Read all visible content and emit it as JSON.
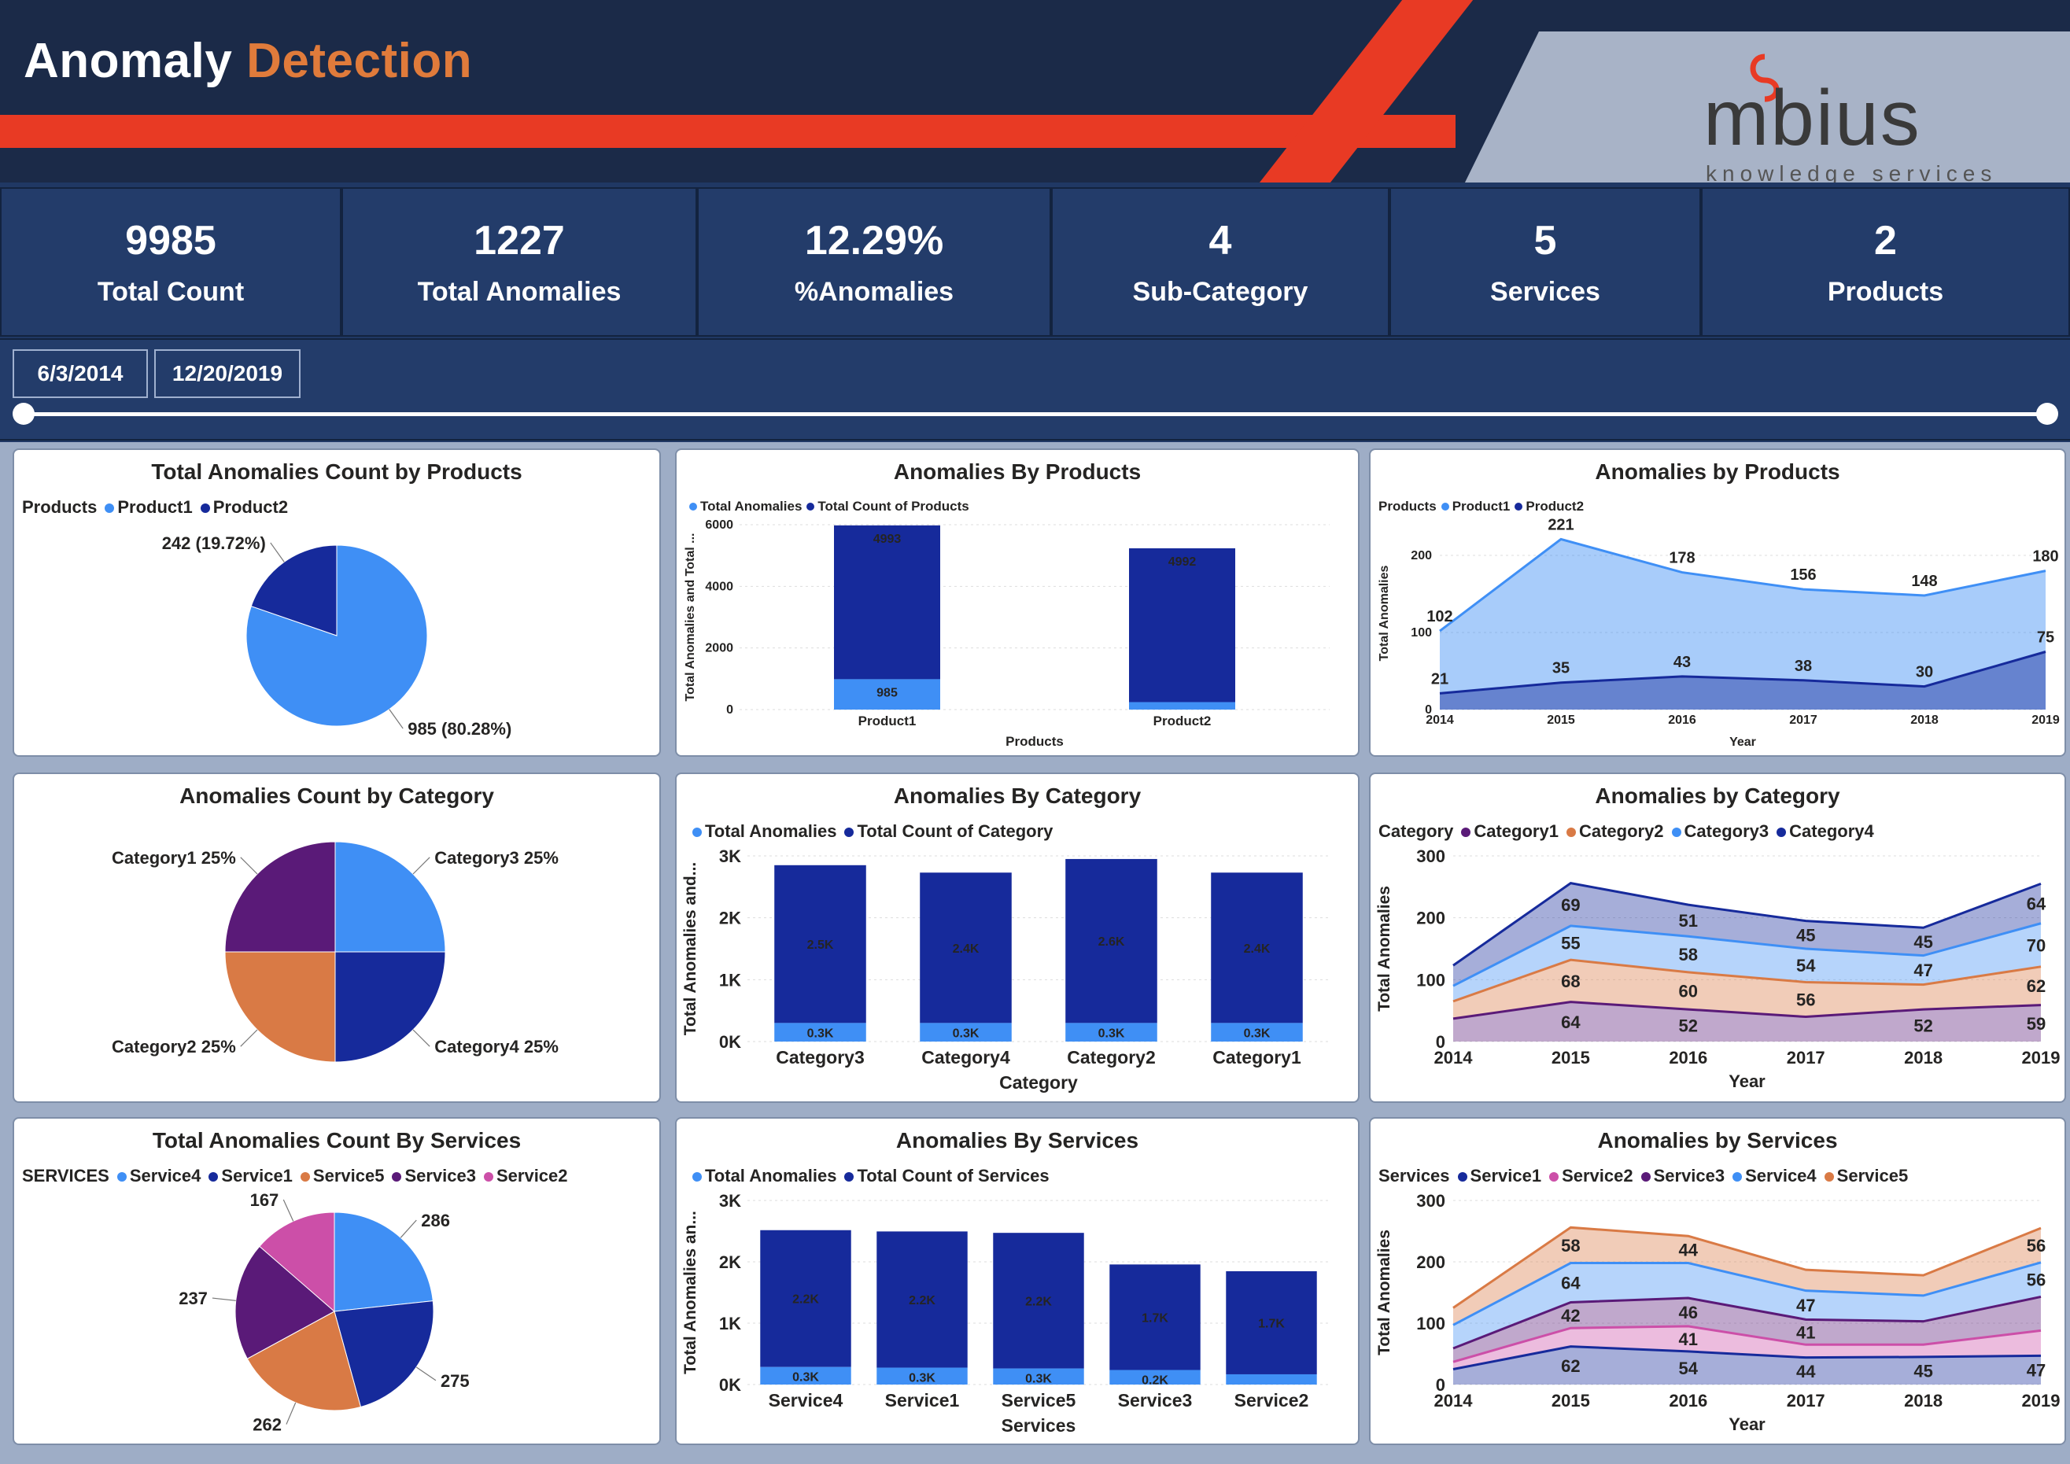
{
  "header": {
    "title_main": "Anomaly",
    "title_accent": "Detection",
    "logo_text": "mbius",
    "logo_sub": "knowledge services"
  },
  "kpis": [
    {
      "value": "9985",
      "label": "Total Count"
    },
    {
      "value": "1227",
      "label": "Total Anomalies"
    },
    {
      "value": "12.29%",
      "label": "%Anomalies"
    },
    {
      "value": "4",
      "label": "Sub-Category"
    },
    {
      "value": "5",
      "label": "Services"
    },
    {
      "value": "2",
      "label": "Products"
    }
  ],
  "filter": {
    "start_date": "6/3/2014",
    "end_date": "12/20/2019",
    "range_start": 0,
    "range_end": 1
  },
  "colors": {
    "light_blue": "#3f8ff5",
    "dark_blue": "#162a9b",
    "orange": "#d97a45",
    "purple": "#5a1a78",
    "pink": "#cc4fa8",
    "title_red": "#e83a24"
  },
  "chart_data": [
    {
      "id": "pie-products",
      "type": "pie",
      "title": "Total Anomalies Count by Products",
      "legend_title": "Products",
      "slices": [
        {
          "name": "Product1",
          "value": 985,
          "label": "985 (80.28%)",
          "color": "#3f8ff5"
        },
        {
          "name": "Product2",
          "value": 242,
          "label": "242 (19.72%)",
          "color": "#162a9b"
        }
      ]
    },
    {
      "id": "bar-products",
      "type": "bar",
      "title": "Anomalies By Products",
      "legend": [
        "Total Anomalies",
        "Total Count of Products"
      ],
      "categories": [
        "Product1",
        "Product2"
      ],
      "series": [
        {
          "name": "Total Anomalies",
          "values": [
            985,
            242
          ],
          "labels": [
            "985",
            ""
          ],
          "color": "#3f8ff5"
        },
        {
          "name": "Total Count of Products",
          "values": [
            4993,
            4992
          ],
          "labels": [
            "4993",
            "4992"
          ],
          "color": "#162a9b"
        }
      ],
      "xlabel": "Products",
      "ylabel": "Total Anomalies and Total ...",
      "ylim": [
        0,
        6000
      ],
      "yticks": [
        0,
        2000,
        4000,
        6000
      ],
      "ytick_labels": [
        "0",
        "2000",
        "4000",
        "6000"
      ]
    },
    {
      "id": "area-products",
      "type": "area",
      "title": "Anomalies by Products",
      "legend_title": "Products",
      "x": [
        "2014",
        "2015",
        "2016",
        "2017",
        "2018",
        "2019"
      ],
      "series": [
        {
          "name": "Product1",
          "values": [
            102,
            221,
            178,
            156,
            148,
            180
          ],
          "color": "#3f8ff5"
        },
        {
          "name": "Product2",
          "values": [
            21,
            35,
            43,
            38,
            30,
            75
          ],
          "color": "#162a9b"
        }
      ],
      "xlabel": "Year",
      "ylabel": "Total Anomalies",
      "ylim": [
        0,
        250
      ],
      "yticks": [
        0,
        100,
        200
      ],
      "stacked": false
    },
    {
      "id": "pie-category",
      "type": "pie",
      "title": "Anomalies Count by Category",
      "slices": [
        {
          "name": "Category3",
          "value": 25,
          "label": "Category3 25%",
          "color": "#3f8ff5"
        },
        {
          "name": "Category4",
          "value": 25,
          "label": "Category4 25%",
          "color": "#162a9b"
        },
        {
          "name": "Category2",
          "value": 25,
          "label": "Category2 25%",
          "color": "#d97a45"
        },
        {
          "name": "Category1",
          "value": 25,
          "label": "Category1 25%",
          "color": "#5a1a78"
        }
      ]
    },
    {
      "id": "bar-category",
      "type": "bar",
      "title": "Anomalies By Category",
      "legend": [
        "Total Anomalies",
        "Total Count of Category"
      ],
      "categories": [
        "Category3",
        "Category4",
        "Category2",
        "Category1"
      ],
      "series": [
        {
          "name": "Total Anomalies",
          "values": [
            300,
            300,
            300,
            300
          ],
          "labels": [
            "0.3K",
            "0.3K",
            "0.3K",
            "0.3K"
          ],
          "color": "#3f8ff5"
        },
        {
          "name": "Total Count of Category",
          "values": [
            2550,
            2430,
            2650,
            2430
          ],
          "labels": [
            "2.5K",
            "2.4K",
            "2.6K",
            "2.4K"
          ],
          "color": "#162a9b"
        }
      ],
      "xlabel": "Category",
      "ylabel": "Total Anomalies and...",
      "ylim": [
        0,
        3000
      ],
      "yticks": [
        0,
        1000,
        2000,
        3000
      ],
      "ytick_labels": [
        "0K",
        "1K",
        "2K",
        "3K"
      ]
    },
    {
      "id": "area-category",
      "type": "area",
      "title": "Anomalies by Category",
      "legend_title": "Category",
      "x": [
        "2014",
        "2015",
        "2016",
        "2017",
        "2018",
        "2019"
      ],
      "series": [
        {
          "name": "Category1",
          "values": [
            37,
            64,
            52,
            40,
            52,
            59
          ],
          "color": "#5a1a78",
          "labels": [
            "",
            "64",
            "52",
            "",
            "52",
            "59"
          ]
        },
        {
          "name": "Category2",
          "values": [
            28,
            68,
            60,
            56,
            40,
            62
          ],
          "color": "#d97a45",
          "labels": [
            "",
            "68",
            "60",
            "56",
            "",
            "62"
          ]
        },
        {
          "name": "Category3",
          "values": [
            25,
            55,
            58,
            54,
            47,
            70
          ],
          "color": "#3f8ff5",
          "labels": [
            "",
            "55",
            "58",
            "54",
            "47",
            "70"
          ]
        },
        {
          "name": "Category4",
          "values": [
            33,
            69,
            51,
            45,
            45,
            64
          ],
          "color": "#162a9b",
          "labels": [
            "",
            "69",
            "51",
            "45",
            "45",
            "64"
          ]
        }
      ],
      "xlabel": "Year",
      "ylabel": "Total Anomalies",
      "ylim": [
        0,
        300
      ],
      "yticks": [
        0,
        100,
        200,
        300
      ],
      "stacked": true
    },
    {
      "id": "pie-services",
      "type": "pie",
      "title": "Total Anomalies Count By Services",
      "legend_title": "SERVICES",
      "slices": [
        {
          "name": "Service4",
          "value": 286,
          "label": "286",
          "color": "#3f8ff5"
        },
        {
          "name": "Service1",
          "value": 275,
          "label": "275",
          "color": "#162a9b"
        },
        {
          "name": "Service5",
          "value": 262,
          "label": "262",
          "color": "#d97a45"
        },
        {
          "name": "Service3",
          "value": 237,
          "label": "237",
          "color": "#5a1a78"
        },
        {
          "name": "Service2",
          "value": 167,
          "label": "167",
          "color": "#cc4fa8"
        }
      ]
    },
    {
      "id": "bar-services",
      "type": "bar",
      "title": "Anomalies By Services",
      "legend": [
        "Total Anomalies",
        "Total Count of Services"
      ],
      "categories": [
        "Service4",
        "Service1",
        "Service5",
        "Service3",
        "Service2"
      ],
      "series": [
        {
          "name": "Total Anomalies",
          "values": [
            286,
            275,
            262,
            237,
            167
          ],
          "labels": [
            "0.3K",
            "0.3K",
            "0.3K",
            "0.2K",
            ""
          ],
          "color": "#3f8ff5"
        },
        {
          "name": "Total Count of Services",
          "values": [
            2230,
            2220,
            2210,
            1720,
            1680
          ],
          "labels": [
            "2.2K",
            "2.2K",
            "2.2K",
            "1.7K",
            "1.7K"
          ],
          "color": "#162a9b"
        }
      ],
      "xlabel": "Services",
      "ylabel": "Total Anomalies an...",
      "ylim": [
        0,
        3000
      ],
      "yticks": [
        0,
        1000,
        2000,
        3000
      ],
      "ytick_labels": [
        "0K",
        "1K",
        "2K",
        "3K"
      ]
    },
    {
      "id": "area-services",
      "type": "area",
      "title": "Anomalies by Services",
      "legend_title": "Services",
      "legend_order": [
        "Service1",
        "Service2",
        "Service3",
        "Service4",
        "Service5"
      ],
      "x": [
        "2014",
        "2015",
        "2016",
        "2017",
        "2018",
        "2019"
      ],
      "series": [
        {
          "name": "Service1",
          "values": [
            25,
            62,
            54,
            44,
            45,
            47
          ],
          "color": "#162a9b",
          "labels": [
            "",
            "62",
            "54",
            "44",
            "45",
            "47"
          ]
        },
        {
          "name": "Service2",
          "values": [
            12,
            30,
            41,
            21,
            20,
            41
          ],
          "color": "#cc4fa8",
          "labels": [
            "",
            "",
            "41",
            "",
            "",
            ""
          ]
        },
        {
          "name": "Service3",
          "values": [
            22,
            42,
            46,
            41,
            38,
            55
          ],
          "color": "#5a1a78",
          "labels": [
            "",
            "42",
            "46",
            "41",
            "",
            ""
          ]
        },
        {
          "name": "Service4",
          "values": [
            38,
            64,
            57,
            47,
            42,
            56
          ],
          "color": "#3f8ff5",
          "labels": [
            "",
            "64",
            "",
            "47",
            "",
            "56"
          ]
        },
        {
          "name": "Service5",
          "values": [
            28,
            58,
            44,
            34,
            33,
            56
          ],
          "color": "#d97a45",
          "labels": [
            "",
            "58",
            "44",
            "",
            "",
            "56"
          ]
        }
      ],
      "xlabel": "Year",
      "ylabel": "Total Anomalies",
      "ylim": [
        0,
        300
      ],
      "yticks": [
        0,
        100,
        200,
        300
      ],
      "stacked": true
    }
  ]
}
